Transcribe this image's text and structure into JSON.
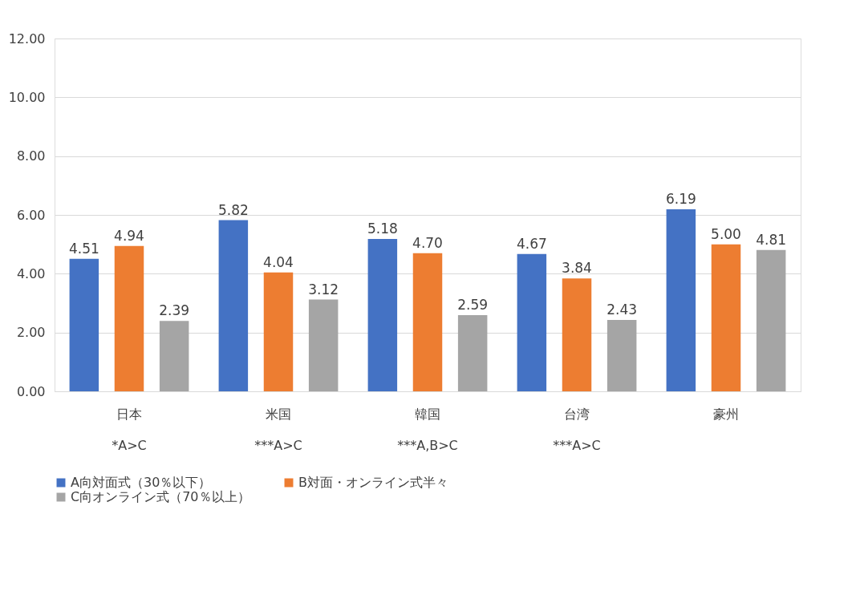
{
  "chart_data": {
    "type": "bar",
    "categories": [
      "日本",
      "米国",
      "韓国",
      "台湾",
      "豪州"
    ],
    "series": [
      {
        "name": "A向対面式（30％以下）",
        "color": "#4472c4",
        "values": [
          4.51,
          5.82,
          5.18,
          4.67,
          6.19
        ],
        "value_labels": [
          "4.51",
          "5.82",
          "5.18",
          "4.67",
          "6.19"
        ]
      },
      {
        "name": "B対面・オンライン式半々",
        "color": "#ed7d31",
        "values": [
          4.94,
          4.04,
          4.7,
          3.84,
          5.0
        ],
        "value_labels": [
          "4.94",
          "4.04",
          "4.70",
          "3.84",
          "5.00"
        ]
      },
      {
        "name": "C向オンライン式（70％以上）",
        "color": "#a5a5a5",
        "values": [
          2.39,
          3.12,
          2.59,
          2.43,
          4.81
        ],
        "value_labels": [
          "2.39",
          "3.12",
          "2.59",
          "2.43",
          "4.81"
        ]
      }
    ],
    "ylim": [
      0,
      12
    ],
    "yticks": [
      {
        "value": 0,
        "label": "0.00"
      },
      {
        "value": 2,
        "label": "2.00"
      },
      {
        "value": 4,
        "label": "4.00"
      },
      {
        "value": 6,
        "label": "6.00"
      },
      {
        "value": 8,
        "label": "8.00"
      },
      {
        "value": 10,
        "label": "10.00"
      },
      {
        "value": 12,
        "label": "12.00"
      }
    ],
    "grid": "y",
    "legend": "bottom",
    "annotations": [
      "*A>C",
      "***A>C",
      "***A,B>C",
      "***A>C"
    ]
  }
}
